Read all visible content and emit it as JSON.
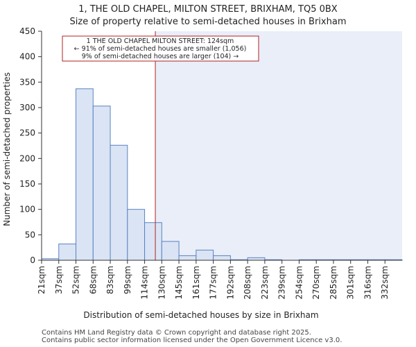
{
  "title_line1": "1, THE OLD CHAPEL, MILTON STREET, BRIXHAM, TQ5 0BX",
  "title_line2": "Size of property relative to semi-detached houses in Brixham",
  "footer_line1": "Contains HM Land Registry data © Crown copyright and database right 2025.",
  "footer_line2": "Contains public sector information licensed under the Open Government Licence v3.0.",
  "colors": {
    "bar_fill": "#dae4f4",
    "bar_stroke": "#5a82c2",
    "marker": "#b22222",
    "shade": "#e9eef8",
    "axis": "#333333"
  },
  "chart_data": {
    "type": "bar",
    "xlabel": "Distribution of semi-detached houses by size in Brixham",
    "ylabel": "Number of semi-detached properties",
    "ylim": [
      0,
      450
    ],
    "yticks": [
      0,
      50,
      100,
      150,
      200,
      250,
      300,
      350,
      400,
      450
    ],
    "categories": [
      "21sqm",
      "37sqm",
      "52sqm",
      "68sqm",
      "83sqm",
      "99sqm",
      "114sqm",
      "130sqm",
      "145sqm",
      "161sqm",
      "177sqm",
      "192sqm",
      "208sqm",
      "223sqm",
      "239sqm",
      "254sqm",
      "270sqm",
      "285sqm",
      "301sqm",
      "316sqm",
      "332sqm"
    ],
    "values": [
      3,
      32,
      337,
      303,
      226,
      100,
      74,
      37,
      9,
      20,
      9,
      1,
      5,
      1,
      0,
      1,
      1,
      1,
      1,
      1,
      1
    ],
    "marker_value": "124sqm",
    "annotation": {
      "line1": "1 THE OLD CHAPEL MILTON STREET: 124sqm",
      "line2": "← 91% of semi-detached houses are smaller (1,056)",
      "line3": "9% of semi-detached houses are larger (104) →"
    }
  }
}
